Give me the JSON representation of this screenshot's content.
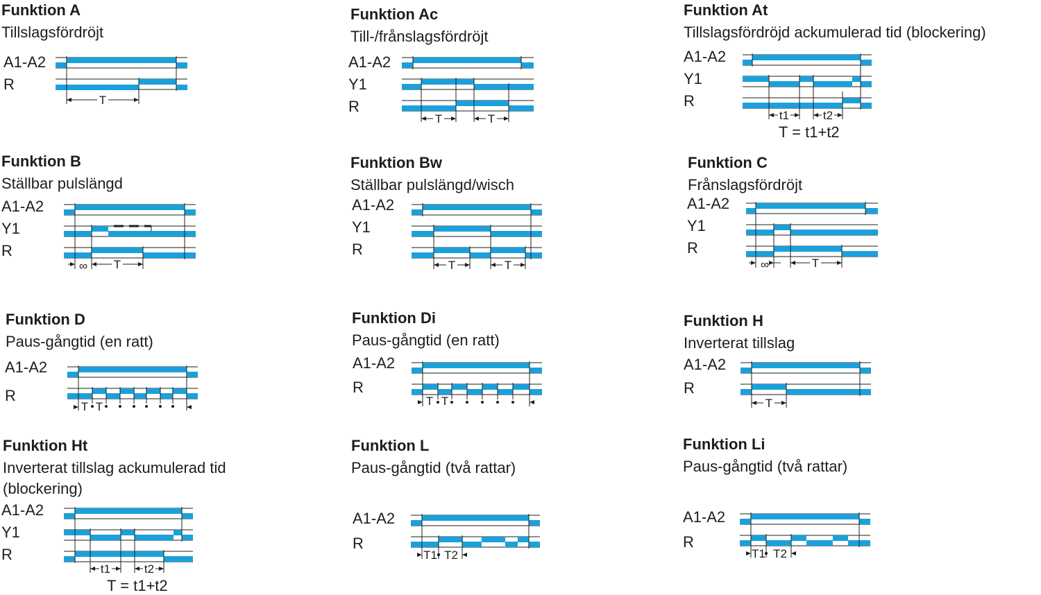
{
  "accent_color": "#1aa1dc",
  "line_color": "#1d1d1b",
  "functions": [
    {
      "title": "Funktion A",
      "subtitle": "Tillslagsfördröjt",
      "labels": [
        "A1-A2",
        "R"
      ],
      "marks": [
        "T"
      ],
      "note": ""
    },
    {
      "title": "Funktion Ac",
      "subtitle": "Till-/frånslagsfördröjt",
      "labels": [
        "A1-A2",
        "Y1",
        "R"
      ],
      "marks": [
        "T",
        "T"
      ],
      "note": ""
    },
    {
      "title": "Funktion At",
      "subtitle": "Tillslagsfördröjd ackumulerad tid (blockering)",
      "labels": [
        "A1-A2",
        "Y1",
        "R"
      ],
      "marks": [
        "t1",
        "t2"
      ],
      "note": "T = t1+t2"
    },
    {
      "title": "Funktion B",
      "subtitle": "Ställbar pulslängd",
      "labels": [
        "A1-A2",
        "Y1",
        "R"
      ],
      "marks": [
        "∞",
        "T"
      ],
      "note": ""
    },
    {
      "title": "Funktion Bw",
      "subtitle": "Ställbar pulslängd/wisch",
      "labels": [
        "A1-A2",
        "Y1",
        "R"
      ],
      "marks": [
        "T",
        "T"
      ],
      "note": ""
    },
    {
      "title": "Funktion C",
      "subtitle": "Frånslagsfördröjt",
      "labels": [
        "A1-A2",
        "Y1",
        "R"
      ],
      "marks": [
        "∞",
        "T"
      ],
      "note": ""
    },
    {
      "title": "Funktion D",
      "subtitle": "Paus-gångtid (en ratt)",
      "labels": [
        "A1-A2",
        "R"
      ],
      "marks": [
        "T",
        "T"
      ],
      "note": ""
    },
    {
      "title": "Funktion Di",
      "subtitle": "Paus-gångtid (en ratt)",
      "labels": [
        "A1-A2",
        "R"
      ],
      "marks": [
        "T",
        "T"
      ],
      "note": ""
    },
    {
      "title": "Funktion H",
      "subtitle": "Inverterat tillslag",
      "labels": [
        "A1-A2",
        "R"
      ],
      "marks": [
        "T"
      ],
      "note": ""
    },
    {
      "title": "Funktion Ht",
      "subtitle": "Inverterat tillslag ackumulerad tid (blockering)",
      "labels": [
        "A1-A2",
        "Y1",
        "R"
      ],
      "marks": [
        "t1",
        "t2"
      ],
      "note": "T = t1+t2"
    },
    {
      "title": "Funktion L",
      "subtitle": "Paus-gångtid (två rattar)",
      "labels": [
        "A1-A2",
        "R"
      ],
      "marks": [
        "T1",
        "T2"
      ],
      "note": ""
    },
    {
      "title": "Funktion Li",
      "subtitle": "Paus-gångtid (två rattar)",
      "labels": [
        "A1-A2",
        "R"
      ],
      "marks": [
        "T1",
        "T2"
      ],
      "note": ""
    }
  ]
}
